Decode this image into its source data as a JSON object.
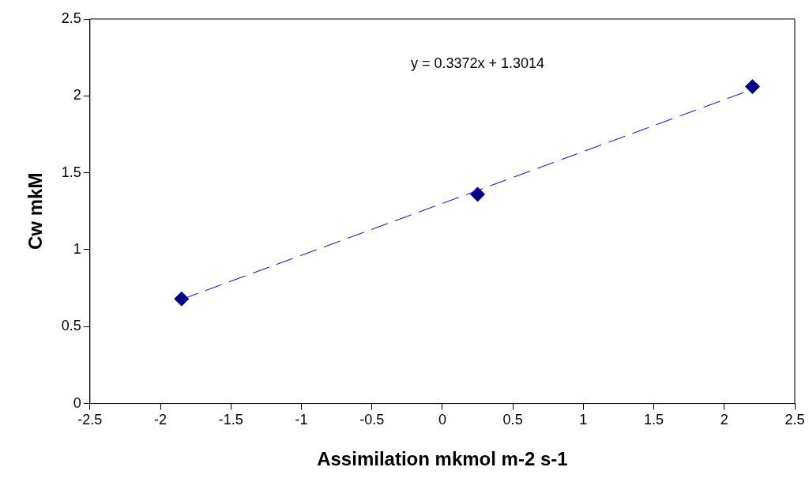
{
  "chart_data": {
    "type": "scatter",
    "xlabel": "Assimilation mkmol m-2 s-1",
    "ylabel": "Cw mkM",
    "annotations": [
      "y = 0.3372x + 1.3014"
    ],
    "xlim": [
      -2.5,
      2.5
    ],
    "xticks": [
      -2.5,
      -2,
      -1.5,
      -1,
      -0.5,
      0,
      0.5,
      1,
      1.5,
      2,
      2.5
    ],
    "ylim": [
      0,
      2.5
    ],
    "yticks": [
      0,
      0.5,
      1,
      1.5,
      2,
      2.5
    ],
    "grid": false,
    "legend": false,
    "series": [
      {
        "type": "line",
        "x": [
          -1.85,
          2.2
        ],
        "values": [
          0.677,
          2.043
        ],
        "color": "#0000ff",
        "line_style": "dashed",
        "marker": "none"
      },
      {
        "type": "scatter",
        "x": [
          -1.85,
          0.25,
          2.2
        ],
        "values": [
          0.68,
          1.36,
          2.06
        ],
        "color": "#000080",
        "marker": "diamond"
      }
    ]
  }
}
